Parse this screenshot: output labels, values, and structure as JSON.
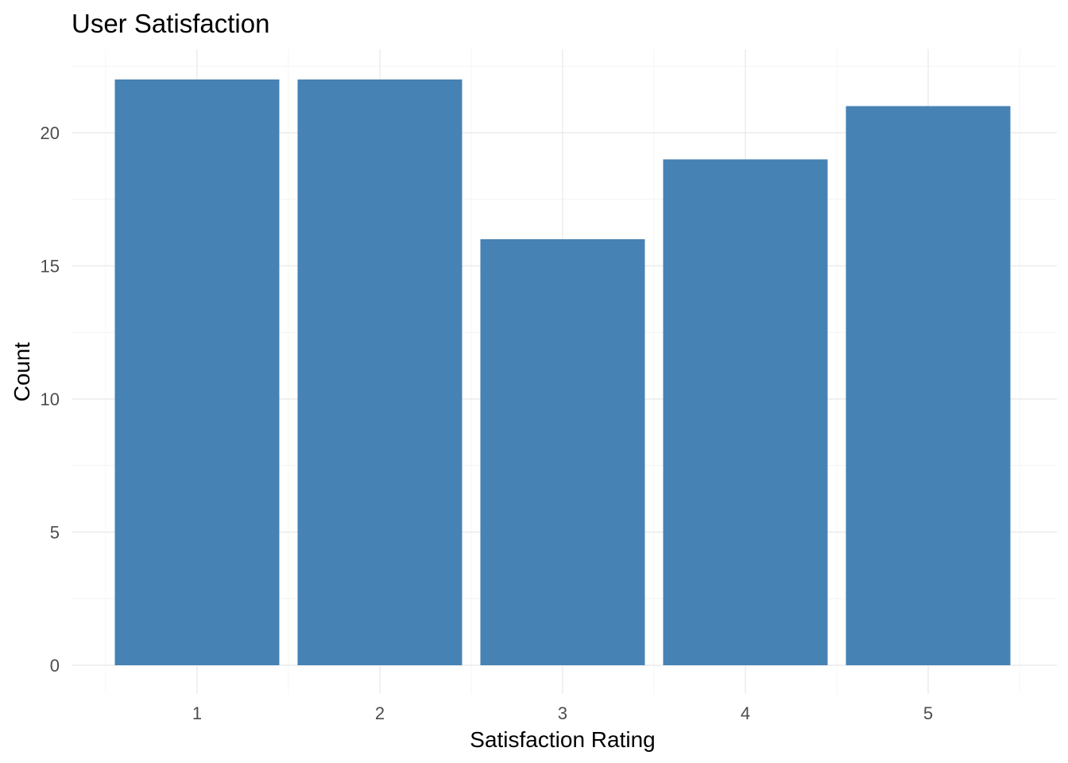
{
  "chart_data": {
    "type": "bar",
    "title": "User Satisfaction",
    "xlabel": "Satisfaction Rating",
    "ylabel": "Count",
    "categories": [
      "1",
      "2",
      "3",
      "4",
      "5"
    ],
    "values": [
      22,
      22,
      16,
      19,
      21
    ],
    "ylim": [
      0,
      22
    ],
    "yticks": [
      "0",
      "5",
      "10",
      "15",
      "20"
    ],
    "bar_color": "#4682b4",
    "grid": true,
    "legend": "none"
  }
}
